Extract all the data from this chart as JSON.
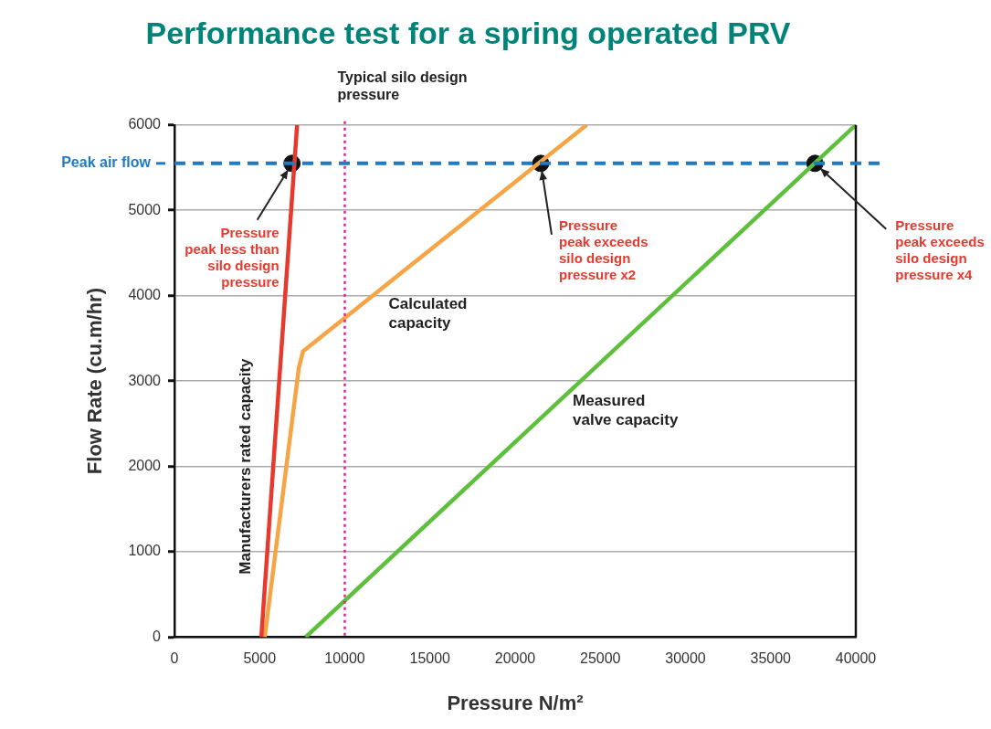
{
  "chart_data": {
    "type": "line",
    "title": "Performance test for a spring operated PRV",
    "xlabel": "Pressure N/m²",
    "ylabel": "Flow Rate (cu.m/hr)",
    "xlim": [
      0,
      40000
    ],
    "xticks": [
      0,
      5000,
      10000,
      15000,
      20000,
      25000,
      30000,
      35000,
      40000
    ],
    "ylim": [
      0,
      6000
    ],
    "yticks": [
      0,
      1000,
      2000,
      3000,
      4000,
      5000,
      6000
    ],
    "grid": "y",
    "series": [
      {
        "color": "#e63a2e",
        "x": [
          5100,
          7200
        ],
        "values": [
          0,
          6000
        ]
      },
      {
        "color": "#f5a546",
        "x": [
          5300,
          7300,
          7550,
          24200
        ],
        "values": [
          0,
          3150,
          3350,
          6000
        ]
      },
      {
        "color": "#5dbf3c",
        "x": [
          7700,
          40000
        ],
        "values": [
          0,
          6000
        ]
      },
      {
        "type": "scatter",
        "color": "#111111",
        "x": [
          6900,
          21500,
          37600
        ],
        "values": [
          5550,
          5550,
          5550
        ]
      }
    ],
    "ref_lines": [
      {
        "axis": "x",
        "value": 10000,
        "label": "Typical silo design\npressure",
        "color": "#e0219a",
        "line_style": "dotted"
      },
      {
        "axis": "y",
        "value": 5550,
        "label": "Peak air flow",
        "color": "#1f7ac4",
        "line_style": "dashed"
      }
    ],
    "annotations": [
      {
        "text": "Pressure\npeak less than\nsilo design\npressure",
        "x": 6900,
        "y": 5550
      },
      {
        "text": "Pressure\npeak exceeds\nsilo design\npressure x2",
        "x": 21500,
        "y": 5550
      },
      {
        "text": "Pressure\npeak exceeds\nsilo design\npressure x4",
        "x": 37600,
        "y": 5550
      },
      {
        "text": "Calculated\ncapacity",
        "x": 10000,
        "y": 3750
      },
      {
        "text": "Measured\nvalve capacity",
        "x": 22200,
        "y": 2700
      },
      {
        "text": "Manufacturers rated capacity",
        "x": 5800,
        "y": 2000
      }
    ],
    "legend": false
  }
}
